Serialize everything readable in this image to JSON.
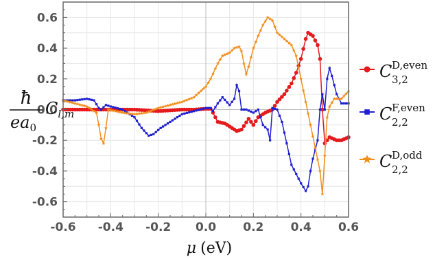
{
  "chart_data": {
    "type": "line",
    "title": "",
    "xlabel": {
      "symbol": "μ",
      "unit": "(eV)"
    },
    "ylabel": {
      "prefix_num": "ħ",
      "prefix_den": "ea",
      "den_sub": "0",
      "symbol": "C",
      "sub": "l,m"
    },
    "xlim": [
      -0.6,
      0.6
    ],
    "ylim": [
      -0.7,
      0.7
    ],
    "x_ticks": [
      "-0.6",
      "-0.4",
      "-0.2",
      "0.0",
      "0.2",
      "0.4",
      "0.6"
    ],
    "y_ticks": [
      "0.6",
      "0.4",
      "0.2",
      "0.0",
      "-0.2",
      "-0.4",
      "-0.6"
    ],
    "grid": true,
    "legend_position": "right",
    "series": [
      {
        "name": "C",
        "legend_sup": "D,even",
        "legend_sub": "3,2",
        "color": "#e41a1c",
        "marker": "circle",
        "points": [
          [
            -0.6,
            0.0
          ],
          [
            -0.5,
            0.0
          ],
          [
            -0.4,
            0.0
          ],
          [
            -0.3,
            0.0
          ],
          [
            -0.2,
            -0.01
          ],
          [
            -0.1,
            0.0
          ],
          [
            -0.05,
            0.0
          ],
          [
            0.0,
            0.005
          ],
          [
            0.02,
            0.005
          ],
          [
            0.03,
            -0.02
          ],
          [
            0.05,
            -0.08
          ],
          [
            0.08,
            -0.09
          ],
          [
            0.1,
            -0.11
          ],
          [
            0.13,
            -0.14
          ],
          [
            0.15,
            -0.13
          ],
          [
            0.18,
            -0.06
          ],
          [
            0.2,
            -0.1
          ],
          [
            0.22,
            -0.05
          ],
          [
            0.25,
            -0.02
          ],
          [
            0.28,
            0.0
          ],
          [
            0.3,
            0.05
          ],
          [
            0.33,
            0.1
          ],
          [
            0.36,
            0.17
          ],
          [
            0.38,
            0.24
          ],
          [
            0.4,
            0.33
          ],
          [
            0.42,
            0.46
          ],
          [
            0.43,
            0.5
          ],
          [
            0.45,
            0.48
          ],
          [
            0.47,
            0.42
          ],
          [
            0.48,
            0.33
          ],
          [
            0.49,
            0.0
          ],
          [
            0.5,
            -0.22
          ],
          [
            0.52,
            -0.18
          ],
          [
            0.55,
            -0.2
          ],
          [
            0.57,
            -0.2
          ],
          [
            0.6,
            -0.18
          ]
        ]
      },
      {
        "name": "C",
        "legend_sup": "F,even",
        "legend_sub": "2,2",
        "color": "#1f1fcf",
        "marker": "square",
        "points": [
          [
            -0.6,
            0.06
          ],
          [
            -0.55,
            0.06
          ],
          [
            -0.5,
            0.07
          ],
          [
            -0.47,
            0.06
          ],
          [
            -0.45,
            0.01
          ],
          [
            -0.44,
            0.0
          ],
          [
            -0.42,
            0.03
          ],
          [
            -0.4,
            0.02
          ],
          [
            -0.35,
            0.0
          ],
          [
            -0.3,
            -0.05
          ],
          [
            -0.27,
            -0.12
          ],
          [
            -0.24,
            -0.17
          ],
          [
            -0.22,
            -0.16
          ],
          [
            -0.19,
            -0.12
          ],
          [
            -0.15,
            -0.08
          ],
          [
            -0.1,
            -0.03
          ],
          [
            -0.05,
            -0.01
          ],
          [
            0.0,
            0.01
          ],
          [
            0.02,
            0.01
          ],
          [
            0.03,
            -0.01
          ],
          [
            0.05,
            0.04
          ],
          [
            0.07,
            0.08
          ],
          [
            0.1,
            0.03
          ],
          [
            0.12,
            0.07
          ],
          [
            0.13,
            0.16
          ],
          [
            0.14,
            0.12
          ],
          [
            0.15,
            0.0
          ],
          [
            0.17,
            0.0
          ],
          [
            0.2,
            -0.02
          ],
          [
            0.22,
            0.0
          ],
          [
            0.24,
            -0.1
          ],
          [
            0.26,
            -0.13
          ],
          [
            0.27,
            -0.2
          ],
          [
            0.28,
            0.01
          ],
          [
            0.3,
            0.0
          ],
          [
            0.32,
            -0.08
          ],
          [
            0.34,
            -0.22
          ],
          [
            0.36,
            -0.36
          ],
          [
            0.38,
            -0.42
          ],
          [
            0.4,
            -0.48
          ],
          [
            0.42,
            -0.53
          ],
          [
            0.43,
            -0.5
          ],
          [
            0.44,
            -0.4
          ],
          [
            0.45,
            -0.32
          ],
          [
            0.47,
            -0.2
          ],
          [
            0.48,
            0.0
          ],
          [
            0.49,
            0.1
          ],
          [
            0.5,
            0.0
          ],
          [
            0.51,
            0.2
          ],
          [
            0.52,
            0.27
          ],
          [
            0.53,
            0.22
          ],
          [
            0.55,
            0.1
          ],
          [
            0.57,
            0.04
          ],
          [
            0.6,
            0.04
          ]
        ]
      },
      {
        "name": "C",
        "legend_sup": "D,odd",
        "legend_sub": "2,2",
        "color": "#f28e1c",
        "marker": "star",
        "points": [
          [
            -0.6,
            0.06
          ],
          [
            -0.5,
            0.02
          ],
          [
            -0.46,
            -0.02
          ],
          [
            -0.45,
            -0.1
          ],
          [
            -0.44,
            -0.19
          ],
          [
            -0.43,
            -0.22
          ],
          [
            -0.42,
            -0.12
          ],
          [
            -0.41,
            0.0
          ],
          [
            -0.38,
            -0.01
          ],
          [
            -0.35,
            -0.02
          ],
          [
            -0.3,
            -0.03
          ],
          [
            -0.25,
            -0.02
          ],
          [
            -0.2,
            0.01
          ],
          [
            -0.15,
            0.03
          ],
          [
            -0.1,
            0.05
          ],
          [
            -0.05,
            0.08
          ],
          [
            0.0,
            0.15
          ],
          [
            0.02,
            0.2
          ],
          [
            0.05,
            0.3
          ],
          [
            0.07,
            0.35
          ],
          [
            0.1,
            0.37
          ],
          [
            0.12,
            0.4
          ],
          [
            0.14,
            0.41
          ],
          [
            0.15,
            0.38
          ],
          [
            0.16,
            0.3
          ],
          [
            0.17,
            0.23
          ],
          [
            0.18,
            0.28
          ],
          [
            0.2,
            0.4
          ],
          [
            0.22,
            0.48
          ],
          [
            0.24,
            0.55
          ],
          [
            0.26,
            0.6
          ],
          [
            0.28,
            0.58
          ],
          [
            0.3,
            0.5
          ],
          [
            0.33,
            0.46
          ],
          [
            0.36,
            0.42
          ],
          [
            0.38,
            0.35
          ],
          [
            0.4,
            0.2
          ],
          [
            0.42,
            0.05
          ],
          [
            0.44,
            -0.1
          ],
          [
            0.46,
            -0.25
          ],
          [
            0.48,
            -0.4
          ],
          [
            0.49,
            -0.55
          ],
          [
            0.5,
            -0.3
          ],
          [
            0.51,
            -0.05
          ],
          [
            0.52,
            0.02
          ],
          [
            0.54,
            0.07
          ],
          [
            0.57,
            0.07
          ],
          [
            0.6,
            0.12
          ]
        ]
      }
    ]
  }
}
